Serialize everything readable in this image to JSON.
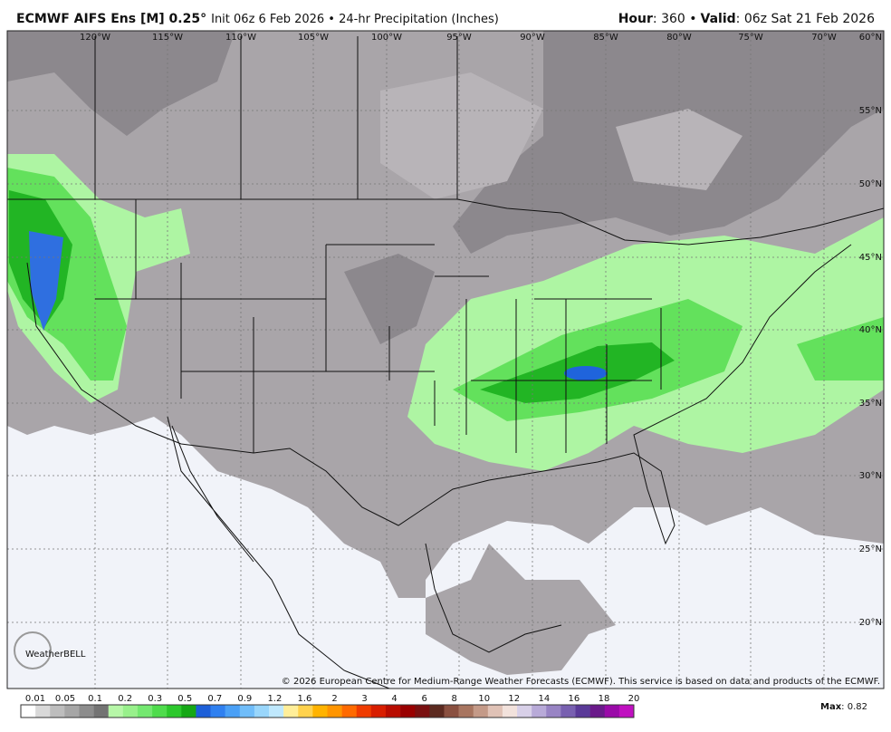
{
  "header": {
    "model": "ECMWF AIFS Ens [M] 0.25°",
    "init": "Init 06z 6 Feb 2026 • 24-hr Precipitation (Inches)",
    "hour_label": "Hour",
    "hour_value": ": 360 •",
    "valid_label": "Valid",
    "valid_value": ": 06z Sat 21 Feb 2026"
  },
  "map": {
    "lon_labels": [
      "120°W",
      "115°W",
      "110°W",
      "105°W",
      "100°W",
      "95°W",
      "90°W",
      "85°W",
      "80°W",
      "75°W",
      "70°W"
    ],
    "lat_labels": [
      "60°N",
      "55°N",
      "50°N",
      "45°N",
      "40°N",
      "35°N",
      "30°N",
      "25°N",
      "20°N"
    ],
    "logo": "WeatherBELL",
    "copyright": "© 2026 European Centre for Medium-Range Weather Forecasts (ECMWF). This service is based on data and products of the ECMWF."
  },
  "colorbar": {
    "labels": [
      "0.01",
      "0.05",
      "0.1",
      "0.2",
      "0.3",
      "0.5",
      "0.7",
      "0.9",
      "1.2",
      "1.6",
      "2",
      "3",
      "4",
      "6",
      "8",
      "10",
      "12",
      "14",
      "16",
      "18",
      "20"
    ]
  },
  "footer": {
    "max_label": "Max",
    "max_value": ": 0.82"
  }
}
